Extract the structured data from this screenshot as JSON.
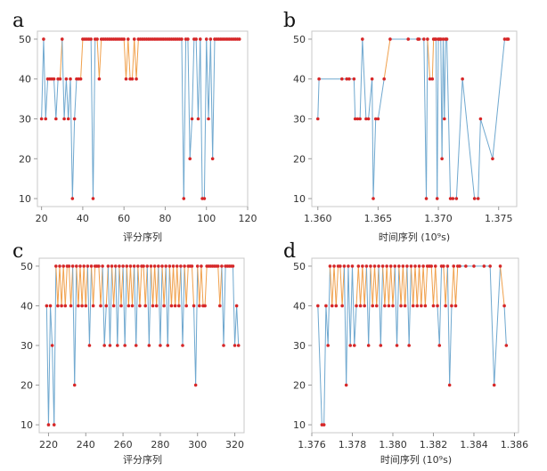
{
  "figure": {
    "colors": {
      "blue": "#6fa8cf",
      "orange": "#f0a04b",
      "red": "#d62728",
      "frame": "#c8c8c8"
    }
  },
  "chart_data": [
    {
      "panel": "a",
      "type": "line",
      "xlabel": "评分序列",
      "xlim": [
        18,
        120
      ],
      "ylim": [
        8,
        52
      ],
      "xticks": [
        20,
        40,
        60,
        80,
        100,
        120
      ],
      "xtick_labels": [
        "20",
        "40",
        "60",
        "80",
        "100",
        "120"
      ],
      "yticks": [
        10,
        20,
        30,
        40,
        50
      ],
      "ytick_labels": [
        "10",
        "20",
        "30",
        "40",
        "50"
      ],
      "x": [
        20,
        21,
        22,
        23,
        24,
        25,
        26,
        27,
        28,
        29,
        30,
        31,
        32,
        33,
        34,
        35,
        36,
        37,
        38,
        39,
        40,
        41,
        42,
        43,
        44,
        45,
        46,
        47,
        48,
        49,
        50,
        51,
        52,
        53,
        54,
        55,
        56,
        57,
        58,
        59,
        60,
        61,
        62,
        63,
        64,
        65,
        66,
        67,
        68,
        69,
        70,
        71,
        72,
        73,
        74,
        75,
        76,
        77,
        78,
        79,
        80,
        81,
        82,
        83,
        84,
        85,
        86,
        87,
        88,
        89,
        90,
        91,
        92,
        93,
        94,
        95,
        96,
        97,
        98,
        99,
        100,
        101,
        102,
        103,
        104,
        105,
        106,
        107,
        108,
        109,
        110,
        111,
        112,
        113,
        114,
        115,
        116
      ],
      "y": [
        30,
        50,
        30,
        40,
        40,
        40,
        40,
        30,
        40,
        40,
        50,
        30,
        40,
        30,
        40,
        10,
        30,
        40,
        40,
        40,
        50,
        50,
        50,
        50,
        50,
        10,
        50,
        50,
        40,
        50,
        50,
        50,
        50,
        50,
        50,
        50,
        50,
        50,
        50,
        50,
        50,
        40,
        50,
        40,
        40,
        50,
        40,
        50,
        50,
        50,
        50,
        50,
        50,
        50,
        50,
        50,
        50,
        50,
        50,
        50,
        50,
        50,
        50,
        50,
        50,
        50,
        50,
        50,
        50,
        10,
        50,
        50,
        20,
        30,
        50,
        50,
        30,
        50,
        10,
        10,
        50,
        30,
        50,
        20,
        50,
        50,
        50,
        50,
        50,
        50,
        50,
        50,
        50,
        50,
        50,
        50,
        50
      ],
      "series": [
        {
          "name": "",
          "color": "#6fa8cf"
        },
        {
          "name": "",
          "color": "#f0a04b"
        }
      ]
    },
    {
      "panel": "b",
      "type": "line",
      "xlabel": "时间序列 (10⁹s)",
      "xlim": [
        1.3595,
        1.3765
      ],
      "ylim": [
        8,
        52
      ],
      "xticks": [
        1.36,
        1.365,
        1.37,
        1.375
      ],
      "xtick_labels": [
        "1.360",
        "1.365",
        "1.370",
        "1.375"
      ],
      "yticks": [
        10,
        20,
        30,
        40,
        50
      ],
      "ytick_labels": [
        "10",
        "20",
        "30",
        "40",
        "50"
      ],
      "x": [
        1.36,
        1.3601,
        1.362,
        1.3624,
        1.3626,
        1.363,
        1.3631,
        1.3633,
        1.3635,
        1.3637,
        1.364,
        1.3642,
        1.3645,
        1.3646,
        1.3648,
        1.365,
        1.3655,
        1.366,
        1.3675,
        1.3683,
        1.3684,
        1.3688,
        1.369,
        1.3691,
        1.3693,
        1.3695,
        1.3696,
        1.3697,
        1.3698,
        1.3699,
        1.37,
        1.3701,
        1.3702,
        1.3703,
        1.3704,
        1.3705,
        1.3706,
        1.3707,
        1.371,
        1.3712,
        1.3715,
        1.372,
        1.373,
        1.3733,
        1.3735,
        1.3745,
        1.3755,
        1.3757,
        1.3758
      ],
      "y": [
        30,
        40,
        40,
        40,
        40,
        40,
        30,
        30,
        30,
        50,
        30,
        30,
        40,
        10,
        30,
        30,
        40,
        50,
        50,
        50,
        50,
        50,
        10,
        50,
        40,
        40,
        50,
        50,
        50,
        10,
        50,
        50,
        50,
        20,
        50,
        30,
        50,
        50,
        10,
        10,
        10,
        40,
        10,
        10,
        30,
        20,
        50,
        50,
        50
      ],
      "series": [
        {
          "name": "",
          "color": "#6fa8cf"
        },
        {
          "name": "",
          "color": "#f0a04b"
        }
      ]
    },
    {
      "panel": "c",
      "type": "line",
      "xlabel": "评分序列",
      "xlim": [
        215,
        325
      ],
      "ylim": [
        8,
        52
      ],
      "xticks": [
        220,
        240,
        260,
        280,
        300,
        320
      ],
      "xtick_labels": [
        "220",
        "240",
        "260",
        "280",
        "300",
        "320"
      ],
      "yticks": [
        10,
        20,
        30,
        40,
        50
      ],
      "ytick_labels": [
        "10",
        "20",
        "30",
        "40",
        "50"
      ],
      "x": [
        219,
        220,
        221,
        222,
        223,
        224,
        225,
        226,
        227,
        228,
        229,
        230,
        231,
        232,
        233,
        234,
        235,
        236,
        237,
        238,
        239,
        240,
        241,
        242,
        243,
        244,
        245,
        246,
        247,
        248,
        249,
        250,
        251,
        252,
        253,
        254,
        255,
        256,
        257,
        258,
        259,
        260,
        261,
        262,
        263,
        264,
        265,
        266,
        267,
        268,
        269,
        270,
        271,
        272,
        273,
        274,
        275,
        276,
        277,
        278,
        279,
        280,
        281,
        282,
        283,
        284,
        285,
        286,
        287,
        288,
        289,
        290,
        291,
        292,
        293,
        294,
        295,
        296,
        297,
        298,
        299,
        300,
        301,
        302,
        303,
        304,
        305,
        306,
        307,
        308,
        309,
        310,
        311,
        312,
        313,
        314,
        315,
        316,
        317,
        318,
        319,
        320,
        321,
        322
      ],
      "y": [
        40,
        10,
        40,
        30,
        10,
        50,
        40,
        50,
        40,
        50,
        40,
        50,
        50,
        40,
        50,
        20,
        50,
        40,
        50,
        40,
        50,
        40,
        50,
        30,
        50,
        40,
        50,
        50,
        50,
        40,
        50,
        30,
        40,
        50,
        30,
        50,
        40,
        50,
        30,
        50,
        40,
        50,
        30,
        50,
        40,
        50,
        40,
        50,
        30,
        50,
        40,
        50,
        50,
        40,
        50,
        30,
        50,
        40,
        50,
        40,
        50,
        30,
        50,
        40,
        50,
        30,
        50,
        40,
        50,
        40,
        50,
        40,
        50,
        30,
        50,
        40,
        50,
        50,
        50,
        40,
        20,
        50,
        40,
        50,
        40,
        40,
        50,
        50,
        50,
        50,
        50,
        50,
        50,
        40,
        50,
        30,
        50,
        50,
        50,
        50,
        50,
        30,
        40,
        30
      ],
      "series": [
        {
          "name": "",
          "color": "#6fa8cf"
        },
        {
          "name": "",
          "color": "#f0a04b"
        }
      ]
    },
    {
      "panel": "d",
      "type": "line",
      "xlabel": "时间序列 (10⁹s)",
      "xlim": [
        1.376,
        1.3862
      ],
      "ylim": [
        8,
        52
      ],
      "xticks": [
        1.376,
        1.378,
        1.38,
        1.382,
        1.384,
        1.386
      ],
      "xtick_labels": [
        "1.376",
        "1.378",
        "1.380",
        "1.382",
        "1.384",
        "1.386"
      ],
      "yticks": [
        10,
        20,
        30,
        40,
        50
      ],
      "ytick_labels": [
        "10",
        "20",
        "30",
        "40",
        "50"
      ],
      "x": [
        1.3763,
        1.3765,
        1.3766,
        1.3767,
        1.3768,
        1.3769,
        1.377,
        1.3771,
        1.3772,
        1.3773,
        1.3774,
        1.3775,
        1.3776,
        1.3777,
        1.3778,
        1.3779,
        1.378,
        1.3781,
        1.3782,
        1.3783,
        1.3784,
        1.3785,
        1.3786,
        1.3787,
        1.3788,
        1.3789,
        1.379,
        1.3791,
        1.3792,
        1.3793,
        1.3794,
        1.3795,
        1.3796,
        1.3797,
        1.3798,
        1.3799,
        1.38,
        1.3801,
        1.3802,
        1.3803,
        1.3804,
        1.3805,
        1.3806,
        1.3807,
        1.3808,
        1.3809,
        1.381,
        1.3811,
        1.3812,
        1.3813,
        1.3814,
        1.3815,
        1.3816,
        1.3817,
        1.3818,
        1.3819,
        1.382,
        1.3821,
        1.3822,
        1.3823,
        1.3824,
        1.3825,
        1.3826,
        1.3827,
        1.3828,
        1.3829,
        1.383,
        1.3831,
        1.3832,
        1.3833,
        1.3836,
        1.384,
        1.3845,
        1.3848,
        1.385,
        1.3853,
        1.3855,
        1.3856
      ],
      "y": [
        40,
        10,
        10,
        40,
        30,
        50,
        40,
        50,
        40,
        50,
        50,
        40,
        50,
        20,
        50,
        30,
        50,
        30,
        40,
        50,
        40,
        50,
        40,
        50,
        30,
        50,
        40,
        50,
        40,
        50,
        30,
        50,
        40,
        50,
        40,
        50,
        40,
        50,
        30,
        50,
        40,
        50,
        40,
        50,
        30,
        50,
        40,
        50,
        40,
        50,
        40,
        50,
        40,
        50,
        50,
        50,
        40,
        50,
        40,
        30,
        50,
        50,
        40,
        50,
        20,
        40,
        50,
        40,
        50,
        50,
        50,
        50,
        50,
        50,
        20,
        50,
        40,
        30
      ],
      "series": [
        {
          "name": "",
          "color": "#6fa8cf"
        },
        {
          "name": "",
          "color": "#f0a04b"
        }
      ]
    }
  ]
}
